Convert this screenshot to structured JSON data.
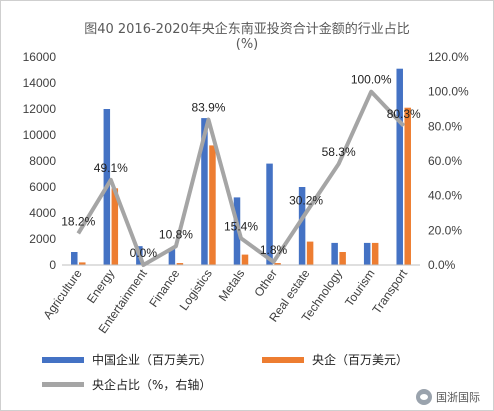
{
  "chart_data": {
    "type": "bar",
    "title": "图40 2016-2020年央企东南亚投资合计金额的行业占比",
    "subtitle": "(%)",
    "categories": [
      "Agriculture",
      "Energy",
      "Entertainment",
      "Finance",
      "Logistics",
      "Metals",
      "Other",
      "Real estate",
      "Technology",
      "Tourism",
      "Transport"
    ],
    "series": [
      {
        "name": "中国企业（百万美元）",
        "type": "bar",
        "axis": "left",
        "color": "#4472C4",
        "values": [
          1000,
          12000,
          1450,
          1300,
          11300,
          5200,
          7800,
          6000,
          1700,
          1700,
          15100
        ]
      },
      {
        "name": "央企（百万美元）",
        "type": "bar",
        "axis": "left",
        "color": "#ED7D31",
        "values": [
          200,
          5900,
          0,
          150,
          9200,
          800,
          150,
          1800,
          1000,
          1700,
          12100
        ]
      },
      {
        "name": "央企占比（%，右轴）",
        "type": "line",
        "axis": "right",
        "color": "#A5A5A5",
        "values": [
          18.2,
          49.1,
          0.0,
          10.8,
          83.9,
          15.4,
          1.8,
          30.2,
          58.3,
          100.0,
          80.3
        ],
        "labels": [
          "18.2%",
          "49.1%",
          "0.0%",
          "10.8%",
          "83.9%",
          "15.4%",
          "1.8%",
          "30.2%",
          "58.3%",
          "100.0%",
          "80.3%"
        ]
      }
    ],
    "y_left": {
      "min": 0,
      "max": 16000,
      "ticks": [
        "0",
        "2000",
        "4000",
        "6000",
        "8000",
        "10000",
        "12000",
        "14000",
        "16000"
      ]
    },
    "y_right": {
      "min": 0,
      "max": 120,
      "ticks": [
        "0.0%",
        "20.0%",
        "40.0%",
        "60.0%",
        "80.0%",
        "100.0%",
        "120.0%"
      ]
    },
    "grid": false,
    "legend": "bottom"
  },
  "watermark": "国浙国际"
}
